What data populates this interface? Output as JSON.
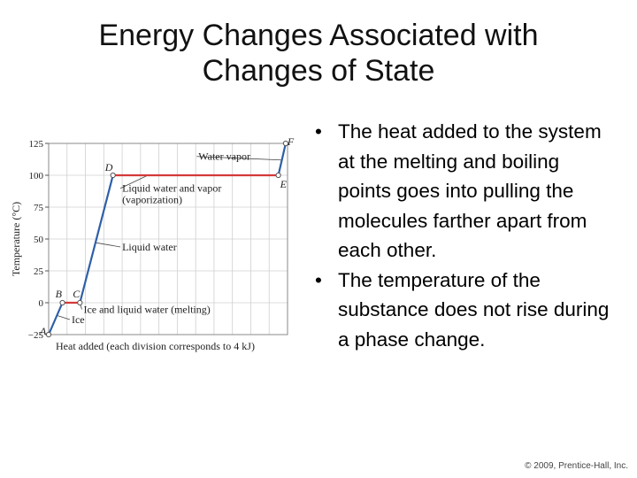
{
  "slide": {
    "title_line1": "Energy Changes Associated with",
    "title_line2": "Changes of State",
    "bullets": [
      "The heat added to the system at the melting and boiling points goes into pulling the molecules farther apart from each other.",
      "The temperature of the substance does not rise during a phase change."
    ],
    "bullet_glyph": "•",
    "footer": "© 2009, Prentice-Hall, Inc."
  },
  "chart_data": {
    "type": "line",
    "title": "",
    "xlabel": "Heat added (each division corresponds to 4 kJ)",
    "ylabel": "Temperature (°C)",
    "xlim": [
      0,
      26
    ],
    "ylim": [
      -25,
      125
    ],
    "yticks": [
      -25,
      0,
      25,
      50,
      75,
      100,
      125
    ],
    "ytick_labels": [
      "−25",
      "0",
      "25",
      "50",
      "75",
      "100",
      "125"
    ],
    "grid": true,
    "grid_x_count": 13,
    "points": [
      {
        "label": "A",
        "x": 0,
        "y": -25
      },
      {
        "label": "B",
        "x": 1.5,
        "y": 0
      },
      {
        "label": "C",
        "x": 3.4,
        "y": 0
      },
      {
        "label": "D",
        "x": 7.0,
        "y": 100
      },
      {
        "label": "E",
        "x": 25.0,
        "y": 100
      },
      {
        "label": "F",
        "x": 25.8,
        "y": 125
      }
    ],
    "segments": [
      {
        "from": 0,
        "to": 1,
        "color": "#2e5fa8"
      },
      {
        "from": 1,
        "to": 2,
        "color": "#d43a3a"
      },
      {
        "from": 2,
        "to": 3,
        "color": "#2e5fa8"
      },
      {
        "from": 3,
        "to": 4,
        "color": "#d43a3a"
      },
      {
        "from": 4,
        "to": 5,
        "color": "#2e5fa8"
      }
    ],
    "annotations": [
      {
        "name": "water-vapor",
        "lines": [
          "Water vapor"
        ],
        "x": 16.3,
        "y": 112,
        "anchor": "start",
        "target": {
          "x": 25.3,
          "y": 112
        }
      },
      {
        "name": "liquid-vapor",
        "lines": [
          "Liquid water and vapor",
          "(vaporization)"
        ],
        "x": 8.0,
        "y": 87,
        "anchor": "start",
        "target": {
          "x": 10.8,
          "y": 100
        }
      },
      {
        "name": "liquid-water",
        "lines": [
          "Liquid water"
        ],
        "x": 8.0,
        "y": 41,
        "anchor": "start",
        "target": {
          "x": 5.2,
          "y": 47
        }
      },
      {
        "name": "ice-liquid",
        "lines": [
          "Ice and liquid water (melting)"
        ],
        "x": 3.8,
        "y": -8,
        "anchor": "start",
        "target": {
          "x": 3.4,
          "y": 0
        }
      },
      {
        "name": "ice",
        "lines": [
          "Ice"
        ],
        "x": 2.5,
        "y": -16,
        "anchor": "start",
        "target": {
          "x": 0.9,
          "y": -10
        }
      }
    ],
    "colors": {
      "frame": "#888888",
      "grid": "#cfcfcf",
      "heating": "#2e5fa8",
      "phase": "#d43a3a"
    }
  }
}
